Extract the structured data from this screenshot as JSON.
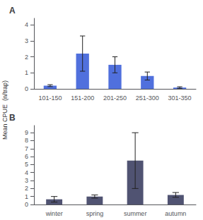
{
  "chart_data": [
    {
      "type": "bar",
      "title": "A",
      "ylabel": "Mean CPUE  (n/trap)",
      "categories": [
        "101-150",
        "151-200",
        "201-250",
        "251-300",
        "301-350"
      ],
      "values": [
        0.2,
        2.2,
        1.5,
        0.8,
        0.08
      ],
      "errors": [
        0.06,
        1.1,
        0.5,
        0.25,
        0.05
      ],
      "ylim": [
        0,
        4.4
      ],
      "yticks": [
        0,
        1,
        2,
        3,
        4
      ],
      "grid": false
    },
    {
      "type": "bar",
      "title": "B",
      "categories": [
        "winter",
        "spring",
        "summer",
        "autumn"
      ],
      "values": [
        0.65,
        1.0,
        5.5,
        1.2
      ],
      "errors": [
        0.35,
        0.2,
        3.5,
        0.3
      ],
      "ylim": [
        0,
        9.9
      ],
      "yticks": [
        0,
        1,
        2,
        3,
        4,
        5,
        6,
        7,
        8,
        9
      ],
      "grid": false
    }
  ]
}
